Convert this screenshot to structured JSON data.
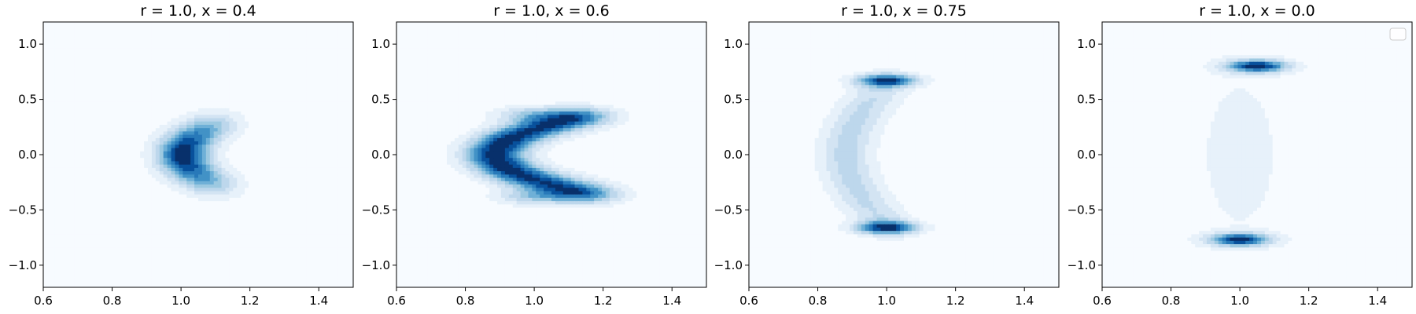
{
  "chart_data": [
    {
      "type": "contour",
      "title": "r = 1.0, x = 0.4",
      "xlim": [
        0.6,
        1.5
      ],
      "ylim": [
        -1.2,
        1.2
      ],
      "xticks": [
        "0.6",
        "0.8",
        "1.0",
        "1.2",
        "1.4"
      ],
      "yticks": [
        "1.0",
        "0.5",
        "0.0",
        "−0.5",
        "−1.0"
      ],
      "colormap": "Blues",
      "shape": "single crescent centered near (1.0, 0.0), opening right",
      "peaks": [
        {
          "x": 1.0,
          "y": 0.0
        }
      ],
      "legend": false
    },
    {
      "type": "contour",
      "title": "r = 1.0, x = 0.6",
      "xlim": [
        0.6,
        1.5
      ],
      "ylim": [
        -1.2,
        1.2
      ],
      "xticks": [
        "0.6",
        "0.8",
        "1.0",
        "1.2",
        "1.4"
      ],
      "yticks": [
        "1.0",
        "0.5",
        "0.0",
        "−0.5",
        "−1.0"
      ],
      "colormap": "Blues",
      "shape": "wide C-shape, arms at y≈±0.33",
      "peaks": [
        {
          "x": 0.93,
          "y": 0.3
        },
        {
          "x": 1.0,
          "y": -0.33
        }
      ],
      "legend": false
    },
    {
      "type": "contour",
      "title": "r = 1.0, x = 0.75",
      "xlim": [
        0.6,
        1.5
      ],
      "ylim": [
        -1.2,
        1.2
      ],
      "xticks": [
        "0.6",
        "0.8",
        "1.0",
        "1.2",
        "1.4"
      ],
      "yticks": [
        "1.0",
        "0.5",
        "0.0",
        "−0.5",
        "−1.0"
      ],
      "colormap": "Blues",
      "shape": "C-shape with blobs near y≈±0.67",
      "peaks": [
        {
          "x": 1.0,
          "y": 0.67
        },
        {
          "x": 1.0,
          "y": -0.66
        }
      ],
      "legend": false
    },
    {
      "type": "contour",
      "title": "r = 1.0, x = 0.0",
      "xlim": [
        0.6,
        1.5
      ],
      "ylim": [
        -1.2,
        1.2
      ],
      "xticks": [
        "0.6",
        "0.8",
        "1.0",
        "1.2",
        "1.4"
      ],
      "yticks": [
        "1.0",
        "0.5",
        "0.0",
        "−0.5",
        "−1.0"
      ],
      "colormap": "Blues",
      "shape": "two blobs near y≈±0.78 connected by faint vertical band",
      "peaks": [
        {
          "x": 1.05,
          "y": 0.8
        },
        {
          "x": 1.0,
          "y": -0.77
        }
      ],
      "legend": true,
      "legend_position": "top-right",
      "legend_entries": []
    }
  ]
}
